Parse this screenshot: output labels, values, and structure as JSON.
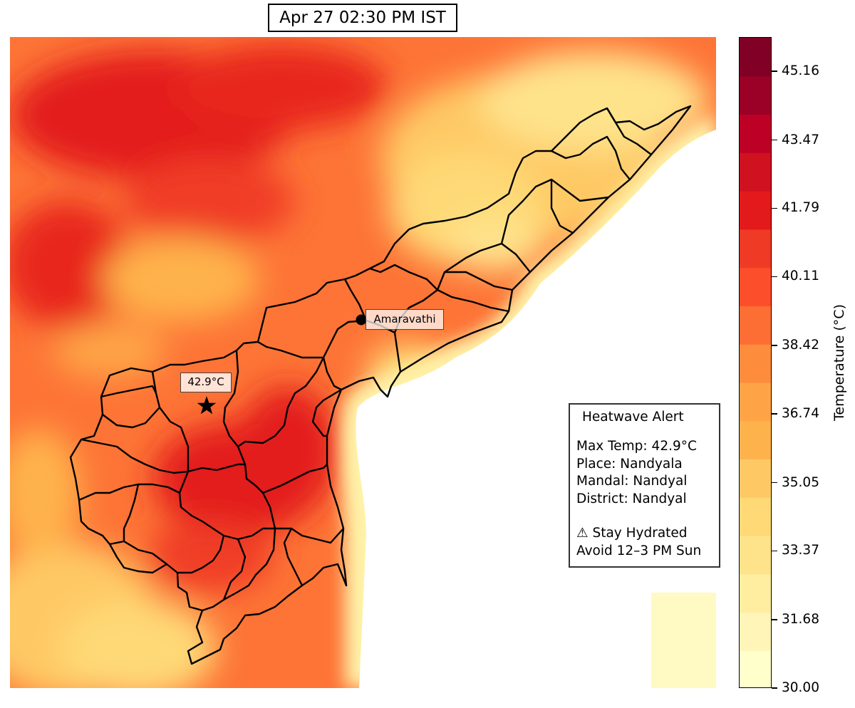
{
  "title": "Apr 27 02:30 PM IST",
  "city": {
    "name": "Amaravathi",
    "marker": "filled-circle"
  },
  "max_marker": {
    "label": "42.9°C",
    "icon": "star-icon"
  },
  "alert": {
    "title": "Heatwave Alert",
    "max_temp": "Max Temp: 42.9°C",
    "place": "Place: Nandyala",
    "mandal": "Mandal: Nandyal",
    "district": "District: Nandyal",
    "advice_1": "⚠ Stay Hydrated",
    "advice_2": "Avoid 12–3 PM Sun"
  },
  "colorbar": {
    "label": "Temperature (°C)",
    "min": 30.0,
    "max": 46.0,
    "ticks": [
      "30.00",
      "31.68",
      "33.37",
      "35.05",
      "36.74",
      "38.42",
      "40.11",
      "41.79",
      "43.47",
      "45.16"
    ],
    "colors": [
      "#ffffcc",
      "#fff5b8",
      "#ffeda0",
      "#fee38b",
      "#fed976",
      "#fec965",
      "#feb24c",
      "#fea446",
      "#fd8d3c",
      "#fc6e33",
      "#fc4e2a",
      "#ef3a26",
      "#e31a1c",
      "#d0111f",
      "#bd0026",
      "#9b0026",
      "#800026"
    ]
  }
}
